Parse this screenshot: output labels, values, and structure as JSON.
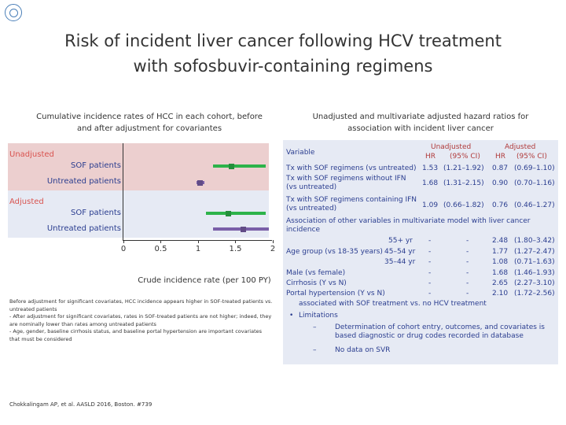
{
  "title_line1": "Risk of incident liver cancer following HCV treatment",
  "title_line2": "with sofosbuvir-containing regimens",
  "left_heading": "Cumulative incidence rates of HCC in each cohort, before and after adjustment for covariantes",
  "right_heading": "Unadjusted and multivariate adjusted hazard ratios for association with incident liver cancer",
  "forest": {
    "groups": [
      {
        "label": "Unadjusted",
        "rows": [
          "SOF patients",
          "Untreated patients"
        ]
      },
      {
        "label": "Adjusted",
        "rows": [
          "SOF patients",
          "Untreated patients"
        ]
      }
    ],
    "points": [
      {
        "row": "Unadjusted SOF patients",
        "estimate": 1.45,
        "low": 1.2,
        "high": 1.9,
        "color": "#2db34a"
      },
      {
        "row": "Unadjusted Untreated patients",
        "estimate": 1.03,
        "low": 0.98,
        "high": 1.08,
        "color": "#7a5fa8"
      },
      {
        "row": "Adjusted SOF patients",
        "estimate": 1.4,
        "low": 1.1,
        "high": 1.9,
        "color": "#2db34a"
      },
      {
        "row": "Adjusted Untreated patients",
        "estimate": 1.6,
        "low": 1.2,
        "high": 1.95,
        "color": "#7a5fa8"
      }
    ],
    "ticks": [
      "0",
      "0.5",
      "1",
      "1.5",
      "2"
    ],
    "xlabel": "Crude incidence rate (per 100 PY)"
  },
  "chart_data": {
    "type": "scatter",
    "title": "Cumulative incidence rates of HCC in each cohort, before and after adjustment for covariantes",
    "xlabel": "Crude incidence rate (per 100 PY)",
    "xlim": [
      0,
      2
    ],
    "categories": [
      "Unadjusted SOF patients",
      "Unadjusted Untreated patients",
      "Adjusted SOF patients",
      "Adjusted Untreated patients"
    ],
    "values": [
      1.45,
      1.03,
      1.4,
      1.6
    ],
    "ci_low": [
      1.2,
      0.98,
      1.1,
      1.2
    ],
    "ci_high": [
      1.9,
      1.08,
      1.9,
      1.95
    ]
  },
  "notes": [
    "Before adjustment for significant covariates, HCC incidence appears higher in SOF-treated patients vs. untreated patients",
    "- After adjustment for significant covariates, rates in SOF-treated patients are not higher; indeed, they are nominally lower than rates among untreated patients",
    "- Age, gender, baseline cirrhosis status, and baseline portal hypertension are important covariates that must be considered"
  ],
  "citation": "Chokkalingam AP, et al. AASLD 2016, Boston. #739",
  "table": {
    "variable_header": "Variable",
    "unadjusted_header": "Unadjusted",
    "adjusted_header": "Adjusted",
    "hr": "HR",
    "ci": "(95% CI)",
    "rows": [
      {
        "label": "Tx with SOF regimens (vs untreated)",
        "u_hr": "1.53",
        "u_ci": "(1.21–1.92)",
        "a_hr": "0.87",
        "a_ci": "(0.69–1.10)"
      },
      {
        "label": "Tx with SOF regimens without IFN (vs untreated)",
        "u_hr": "1.68",
        "u_ci": "(1.31–2.15)",
        "a_hr": "0.90",
        "a_ci": "(0.70–1.16)"
      },
      {
        "label": "Tx with SOF regimens containing IFN (vs untreated)",
        "u_hr": "1.09",
        "u_ci": "(0.66–1.82)",
        "a_hr": "0.76",
        "a_ci": "(0.46–1.27)"
      }
    ],
    "other_header": "Association of other variables in multivariate model with liver cancer incidence",
    "age_group_label": "Age group (vs 18-35 years)",
    "age_rows": [
      {
        "age": "55+ yr",
        "u_hr": "-",
        "u_ci": "-",
        "a_hr": "2.48",
        "a_ci": "(1.80–3.42)"
      },
      {
        "age": "45–54 yr",
        "u_hr": "-",
        "u_ci": "-",
        "a_hr": "1.77",
        "a_ci": "(1.27–2.47)"
      },
      {
        "age": "35–44 yr",
        "u_hr": "-",
        "u_ci": "-",
        "a_hr": "1.08",
        "a_ci": "(0.71–1.63)"
      }
    ],
    "other_rows": [
      {
        "label": "Male (vs female)",
        "u_hr": "-",
        "u_ci": "-",
        "a_hr": "1.68",
        "a_ci": "(1.46–1.93)"
      },
      {
        "label": "Cirrhosis (Y vs N)",
        "u_hr": "-",
        "u_ci": "-",
        "a_hr": "2.65",
        "a_ci": "(2.27–3.10)"
      },
      {
        "label": "Portal hypertension (Y vs N)",
        "u_hr": "-",
        "u_ci": "-",
        "a_hr": "2.10",
        "a_ci": "(1.72–2.56)"
      }
    ]
  },
  "bullets": {
    "first": "associated with SOF treatment vs. no HCV treatment",
    "second": "Limitations",
    "sub1": "Determination of cohort entry, outcomes, and covariates is based diagnostic or drug codes recorded in database",
    "sub2": "No data on SVR"
  },
  "colors": {
    "sof": "#2db34a",
    "untreated": "#7a5fa8",
    "accent": "#2a3d8f",
    "red": "#d9534f"
  }
}
